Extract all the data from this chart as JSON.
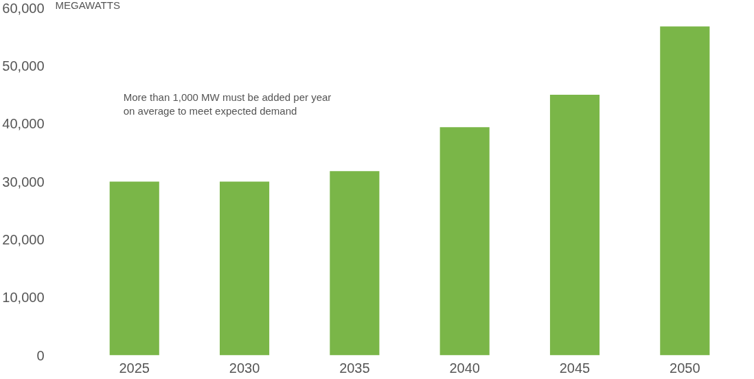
{
  "chart_data": {
    "type": "bar",
    "ylabel": "MEGAWATTS",
    "categories": [
      "2025",
      "2030",
      "2035",
      "2040",
      "2045",
      "2050"
    ],
    "values": [
      30000,
      30000,
      31800,
      39400,
      45000,
      56800
    ],
    "color": "#7ab648",
    "ylim": [
      0,
      60000
    ],
    "yticks": [
      0,
      {
        "value": 10000,
        "label": "10,000"
      },
      {
        "value": 20000,
        "label": "20,000"
      },
      {
        "value": 30000,
        "label": "30,000"
      },
      {
        "value": 40000,
        "label": "40,000"
      },
      {
        "value": 50000,
        "label": "50,000"
      },
      {
        "value": 60000,
        "label": "60,000"
      }
    ],
    "grid": false,
    "annotations": [
      "More than 1,000 MW must be added per year\non average to meet expected demand"
    ]
  }
}
